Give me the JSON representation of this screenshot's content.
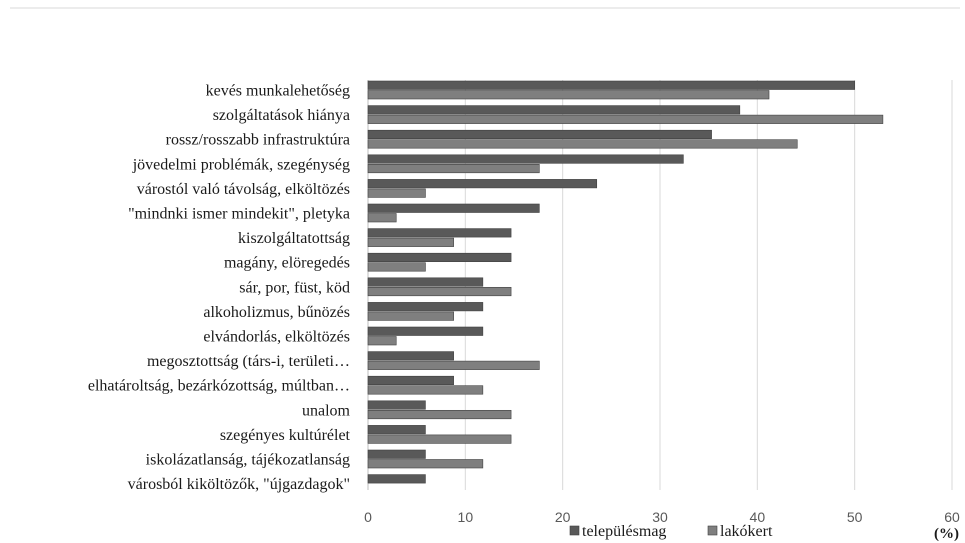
{
  "chart_data": {
    "type": "bar",
    "orientation": "horizontal",
    "categories": [
      "kevés munkalehetőség",
      "szolgáltatások hiánya",
      "rossz/rosszabb infrastruktúra",
      "jövedelmi problémák, szegénység",
      "várostól való távolság, elköltözés",
      "\"mindnki ismer mindekit\", pletyka",
      "kiszolgáltatottság",
      "magány, elöregedés",
      "sár, por, füst, köd",
      "alkoholizmus, bűnözés",
      "elvándorlás, elköltözés",
      "megosztottság (társ-i, területi…",
      "elhatároltság, bezárkózottság, múltban…",
      "unalom",
      "szegényes kultúrélet",
      "iskolázatlanság, tájékozatlanság",
      "városból kiköltözők, \"újgazdagok\""
    ],
    "series": [
      {
        "name": "településmag",
        "color": "#595959",
        "values": [
          50,
          38.2,
          35.3,
          32.4,
          23.5,
          17.6,
          14.7,
          14.7,
          11.8,
          11.8,
          11.8,
          8.8,
          8.8,
          5.9,
          5.9,
          5.9,
          5.9
        ]
      },
      {
        "name": "lakókert",
        "color": "#7f7f7f",
        "values": [
          41.2,
          52.9,
          44.1,
          17.6,
          5.9,
          2.9,
          8.8,
          5.9,
          14.7,
          8.8,
          2.9,
          17.6,
          11.8,
          14.7,
          14.7,
          11.8,
          0
        ]
      }
    ],
    "xlim": [
      0,
      60
    ],
    "xticks": [
      0,
      10,
      20,
      30,
      40,
      50,
      60
    ],
    "xlabel": "(%)",
    "grid": true,
    "legend_position": "bottom"
  }
}
